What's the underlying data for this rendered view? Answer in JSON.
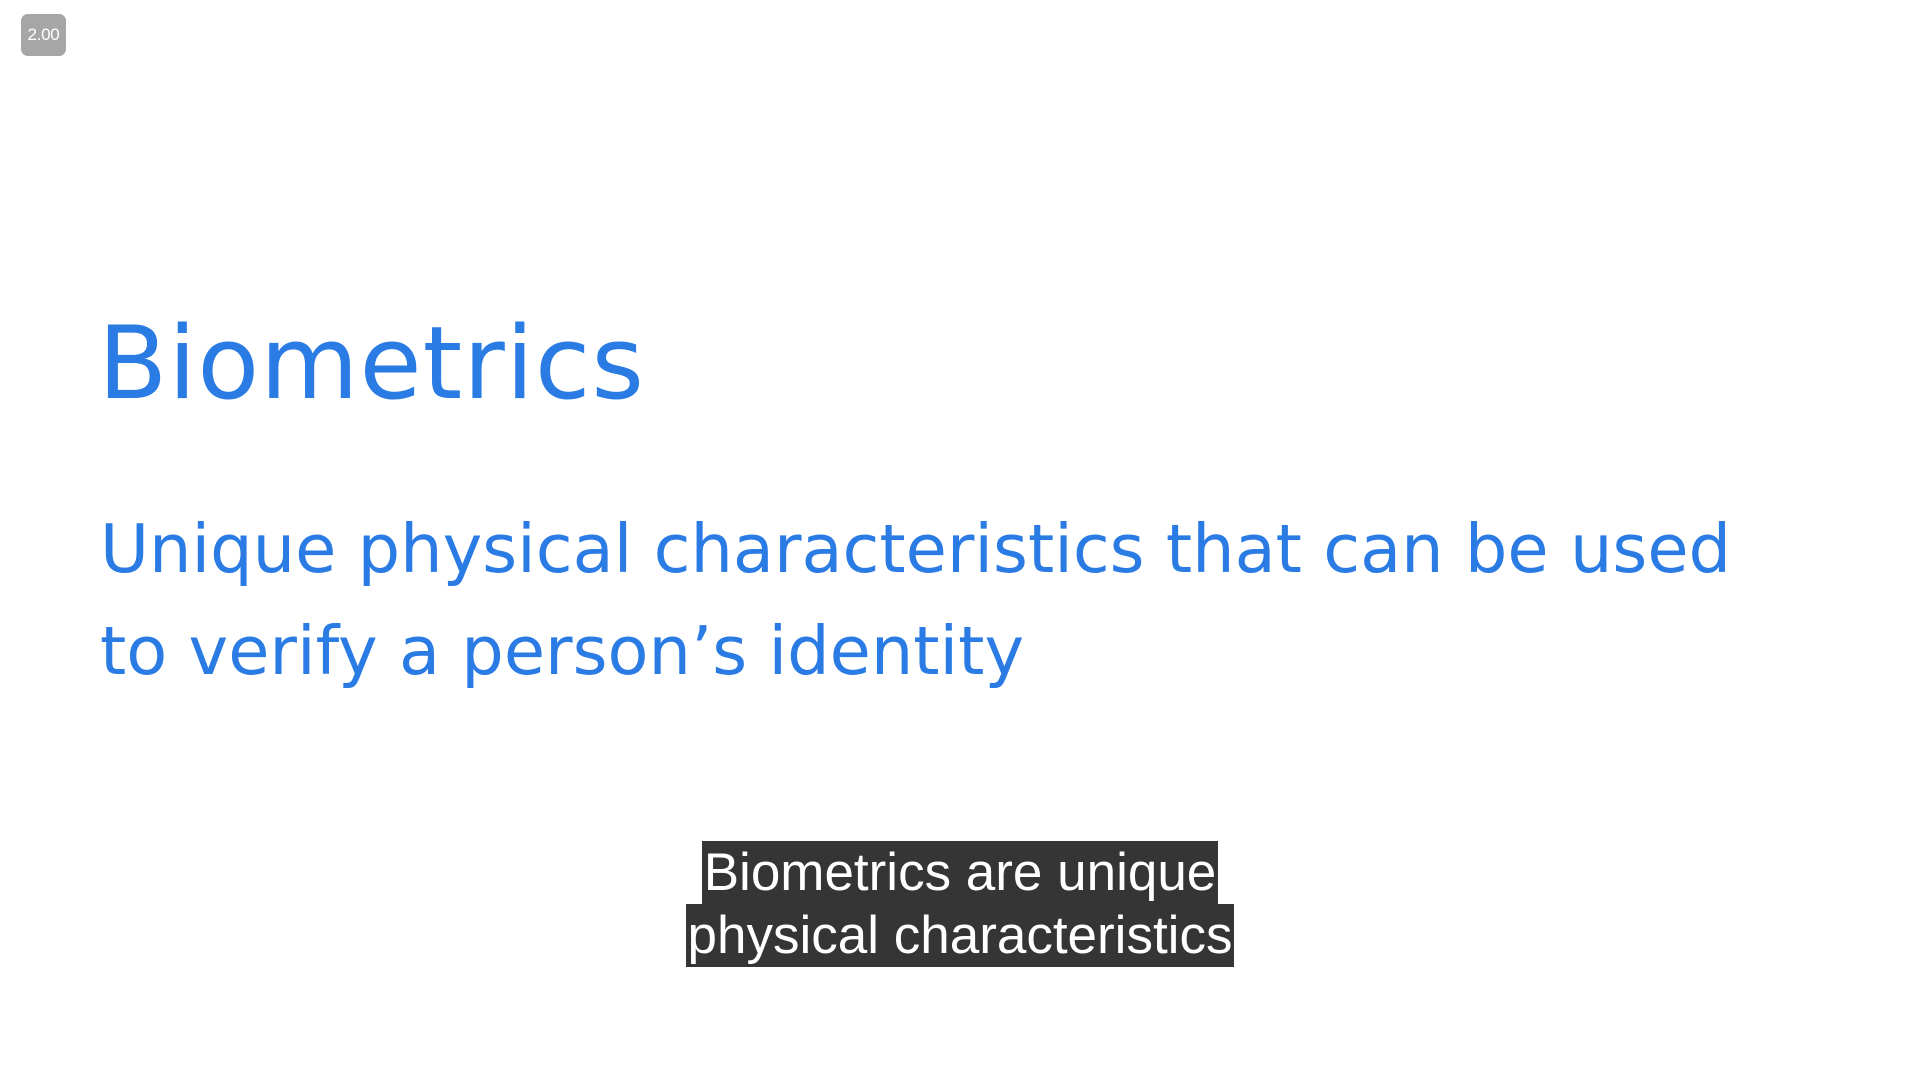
{
  "player": {
    "playback_speed": "2.00"
  },
  "slide": {
    "title": "Biometrics",
    "body_lines": [
      "Unique physical characteristics that can be used",
      "to verify a person’s identity"
    ],
    "accent_color": "#2a7be4"
  },
  "captions": {
    "lines": [
      "Biometrics are unique",
      "physical characteristics"
    ],
    "background": "#1a1a1a",
    "text_color": "#ffffff"
  }
}
